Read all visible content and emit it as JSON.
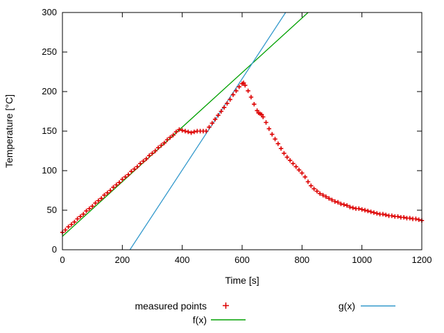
{
  "figure": {
    "background": "#ffffff",
    "border_color": "#000000"
  },
  "chart_data": {
    "type": "scatter",
    "title": "",
    "xlabel": "Time [s]",
    "ylabel": "Temperature [°C]",
    "xlim": [
      0,
      1200
    ],
    "ylim": [
      0,
      300
    ],
    "xticks": [
      0,
      200,
      400,
      600,
      800,
      1000,
      1200
    ],
    "yticks": [
      0,
      50,
      100,
      150,
      200,
      250,
      300
    ],
    "grid": false,
    "legend_position": "below",
    "series": [
      {
        "name": "measured points",
        "type": "points",
        "marker": "+",
        "color": "#dd0000",
        "points": [
          [
            0,
            22
          ],
          [
            10,
            25
          ],
          [
            20,
            29
          ],
          [
            30,
            32
          ],
          [
            40,
            35
          ],
          [
            50,
            39
          ],
          [
            60,
            42
          ],
          [
            70,
            45
          ],
          [
            80,
            49
          ],
          [
            90,
            52
          ],
          [
            100,
            55
          ],
          [
            110,
            59
          ],
          [
            120,
            62
          ],
          [
            130,
            65
          ],
          [
            140,
            69
          ],
          [
            150,
            72
          ],
          [
            160,
            75
          ],
          [
            170,
            79
          ],
          [
            180,
            82
          ],
          [
            190,
            85
          ],
          [
            200,
            89
          ],
          [
            210,
            92
          ],
          [
            220,
            95
          ],
          [
            230,
            99
          ],
          [
            240,
            102
          ],
          [
            250,
            105
          ],
          [
            260,
            109
          ],
          [
            270,
            112
          ],
          [
            280,
            115
          ],
          [
            290,
            119
          ],
          [
            300,
            122
          ],
          [
            310,
            125
          ],
          [
            320,
            129
          ],
          [
            330,
            132
          ],
          [
            340,
            135
          ],
          [
            350,
            139
          ],
          [
            360,
            142
          ],
          [
            370,
            145
          ],
          [
            380,
            149
          ],
          [
            390,
            152
          ],
          [
            400,
            151
          ],
          [
            410,
            150
          ],
          [
            420,
            149
          ],
          [
            430,
            148
          ],
          [
            440,
            149
          ],
          [
            450,
            150
          ],
          [
            460,
            150
          ],
          [
            470,
            150
          ],
          [
            480,
            150
          ],
          [
            490,
            155
          ],
          [
            500,
            160
          ],
          [
            510,
            165
          ],
          [
            520,
            170
          ],
          [
            530,
            175
          ],
          [
            540,
            180
          ],
          [
            550,
            185
          ],
          [
            560,
            190
          ],
          [
            570,
            196
          ],
          [
            580,
            201
          ],
          [
            590,
            206
          ],
          [
            600,
            210
          ],
          [
            605,
            211
          ],
          [
            610,
            208
          ],
          [
            620,
            201
          ],
          [
            630,
            193
          ],
          [
            640,
            184
          ],
          [
            650,
            176
          ],
          [
            655,
            173
          ],
          [
            660,
            172
          ],
          [
            665,
            171
          ],
          [
            670,
            168
          ],
          [
            680,
            161
          ],
          [
            690,
            153
          ],
          [
            700,
            146
          ],
          [
            710,
            140
          ],
          [
            720,
            134
          ],
          [
            730,
            128
          ],
          [
            740,
            122
          ],
          [
            750,
            117
          ],
          [
            760,
            113
          ],
          [
            770,
            109
          ],
          [
            780,
            105
          ],
          [
            790,
            101
          ],
          [
            800,
            97
          ],
          [
            810,
            92
          ],
          [
            820,
            86
          ],
          [
            830,
            81
          ],
          [
            840,
            77
          ],
          [
            850,
            74
          ],
          [
            860,
            71
          ],
          [
            870,
            69
          ],
          [
            880,
            67
          ],
          [
            890,
            65
          ],
          [
            900,
            63
          ],
          [
            910,
            61
          ],
          [
            920,
            60
          ],
          [
            930,
            58
          ],
          [
            940,
            57
          ],
          [
            950,
            56
          ],
          [
            960,
            54
          ],
          [
            970,
            53
          ],
          [
            980,
            52
          ],
          [
            990,
            52
          ],
          [
            1000,
            51
          ],
          [
            1010,
            50
          ],
          [
            1020,
            49
          ],
          [
            1030,
            48
          ],
          [
            1040,
            47
          ],
          [
            1050,
            46
          ],
          [
            1060,
            45
          ],
          [
            1070,
            45
          ],
          [
            1080,
            44
          ],
          [
            1090,
            43
          ],
          [
            1100,
            43
          ],
          [
            1110,
            42
          ],
          [
            1120,
            42
          ],
          [
            1130,
            41
          ],
          [
            1140,
            41
          ],
          [
            1150,
            40
          ],
          [
            1160,
            40
          ],
          [
            1170,
            39
          ],
          [
            1180,
            39
          ],
          [
            1190,
            38
          ],
          [
            1200,
            37
          ]
        ]
      },
      {
        "name": "f(x)",
        "type": "line",
        "color": "#00a000",
        "slope": 0.345,
        "intercept": 17
      },
      {
        "name": "g(x)",
        "type": "line",
        "color": "#3399cc",
        "slope": 0.577,
        "intercept": -130
      }
    ]
  }
}
